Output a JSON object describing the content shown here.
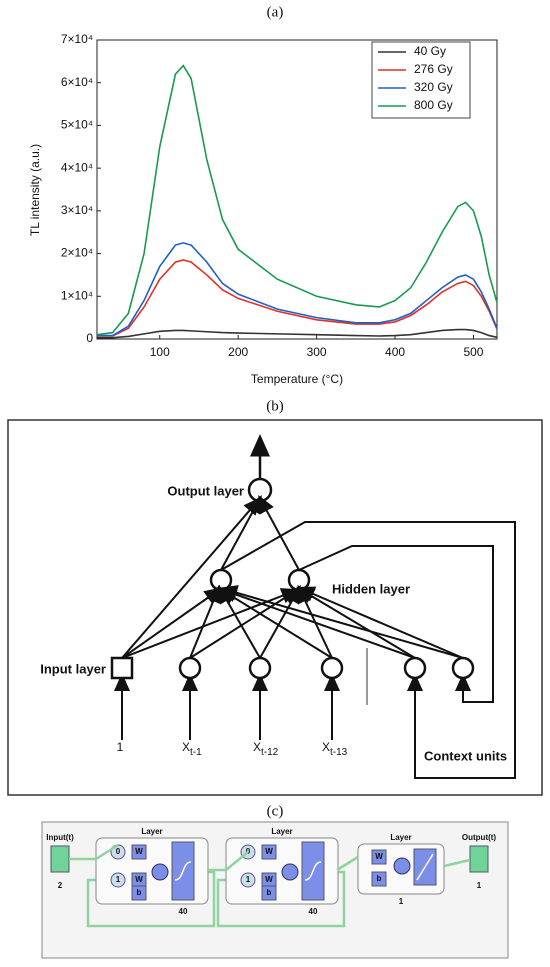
{
  "panel_labels": [
    "(a)",
    "(b)",
    "(c)"
  ],
  "chart_data": {
    "type": "line",
    "x_label": "Temperature (°C)",
    "y_label": "TL intensity (a.u.)",
    "x": [
      20,
      40,
      60,
      80,
      100,
      120,
      130,
      140,
      160,
      180,
      200,
      250,
      300,
      350,
      380,
      400,
      420,
      440,
      460,
      480,
      490,
      500,
      510,
      520,
      530
    ],
    "series": [
      {
        "name": "40 Gy",
        "color": "#333333",
        "values": [
          300,
          300,
          600,
          1200,
          1800,
          2000,
          2000,
          1900,
          1700,
          1500,
          1400,
          1200,
          1000,
          800,
          700,
          800,
          1000,
          1500,
          2000,
          2200,
          2200,
          2000,
          1500,
          800,
          400
        ]
      },
      {
        "name": "276 Gy",
        "color": "#e0302a",
        "values": [
          700,
          700,
          2500,
          7500,
          14000,
          18000,
          18500,
          18000,
          15000,
          11500,
          9500,
          6500,
          4500,
          3500,
          3500,
          4000,
          5500,
          8000,
          11000,
          13000,
          13500,
          12500,
          10000,
          6500,
          2300
        ]
      },
      {
        "name": "320 Gy",
        "color": "#1f5fc8",
        "values": [
          800,
          800,
          3000,
          9000,
          17000,
          22000,
          22500,
          22000,
          18000,
          13000,
          10500,
          7000,
          5000,
          3800,
          3800,
          4500,
          6000,
          9000,
          12000,
          14500,
          15000,
          14000,
          11000,
          7000,
          2500
        ]
      },
      {
        "name": "800 Gy",
        "color": "#1a9a50",
        "values": [
          1000,
          1500,
          6000,
          20000,
          45000,
          62000,
          64000,
          61000,
          42000,
          28000,
          21000,
          14000,
          10000,
          8000,
          7500,
          9000,
          12000,
          18000,
          25000,
          31000,
          32000,
          30000,
          24000,
          15000,
          8500
        ]
      }
    ],
    "xlim": [
      20,
      530
    ],
    "ylim": [
      0,
      70000
    ],
    "xticks": [
      100,
      200,
      300,
      400,
      500
    ],
    "yticks": [
      0,
      {
        "value": 10000,
        "label": "1×10⁴"
      },
      {
        "value": 20000,
        "label": "2×10⁴"
      },
      {
        "value": 30000,
        "label": "3×10⁴"
      },
      {
        "value": 40000,
        "label": "4×10⁴"
      },
      {
        "value": 50000,
        "label": "5×10⁴"
      },
      {
        "value": 60000,
        "label": "6×10⁴"
      },
      {
        "value": 70000,
        "label": "7×10⁴"
      }
    ],
    "legend": "upper right",
    "grid": false
  },
  "diagram_b": {
    "output_label": "Output layer",
    "hidden_label": "Hidden layer",
    "input_label": "Input layer",
    "context_label": "Context units",
    "inputs": [
      {
        "text": "1"
      },
      {
        "text": "X",
        "sub": "t-1"
      },
      {
        "text": "X",
        "sub": "t-12"
      },
      {
        "text": "X",
        "sub": "t-13"
      }
    ]
  },
  "diagram_c": {
    "input": {
      "label": "Input(t)",
      "size": "2"
    },
    "layers": [
      {
        "title": "Layer",
        "delays": [
          "0",
          "1"
        ],
        "weights": [
          "W",
          "W"
        ],
        "bias": "b",
        "size": "40"
      },
      {
        "title": "Layer",
        "delays": [
          "0",
          "1"
        ],
        "weights": [
          "W",
          "W"
        ],
        "bias": "b",
        "size": "40"
      },
      {
        "title": "Layer",
        "weights": [
          "W"
        ],
        "bias": "b",
        "size": "1"
      }
    ],
    "output": {
      "label": "Output(t)",
      "size": "1"
    }
  }
}
